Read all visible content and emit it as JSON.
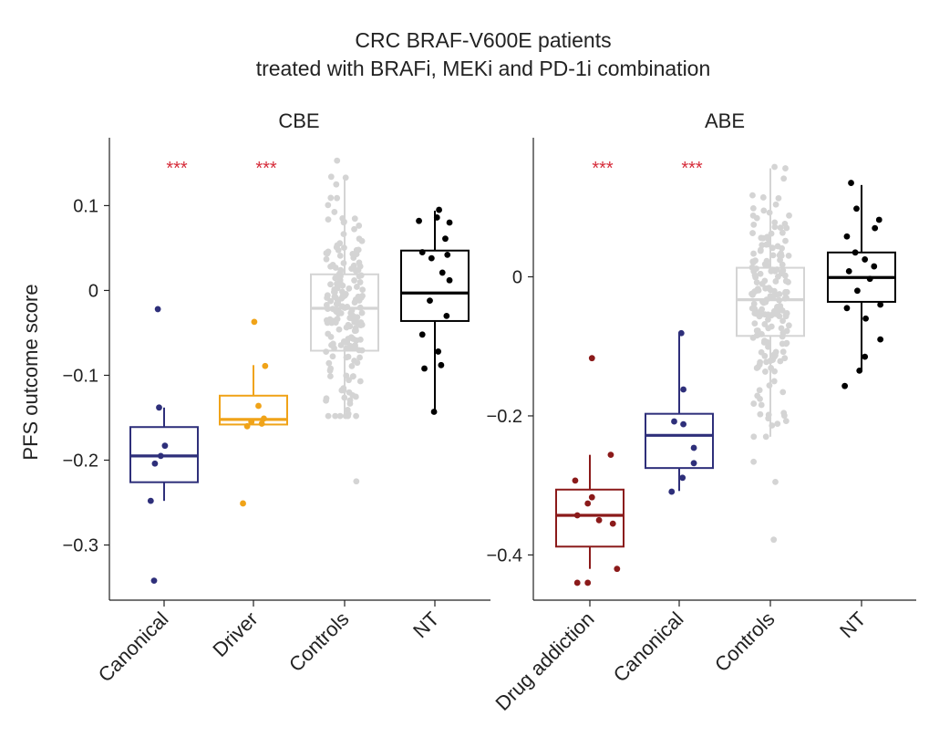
{
  "chart_data": {
    "type": "box",
    "title": "CRC BRAF-V600E patients",
    "subtitle": "treated with BRAFi, MEKi and PD-1i combination",
    "ylabel": "PFS outcome score",
    "significance_color": "#d62c3a",
    "panels": [
      {
        "name": "CBE",
        "ylim": [
          -0.365,
          0.18
        ],
        "yticks": [
          0.1,
          0,
          -0.1,
          -0.2,
          -0.3
        ],
        "ytick_labels": [
          "0.1",
          "0",
          "−0.1",
          "−0.2",
          "−0.3"
        ],
        "groups": [
          {
            "label": "Canonical",
            "color": "#2e2f7a",
            "box": {
              "q1": -0.226,
              "median": -0.195,
              "q3": -0.161,
              "whisker_low": -0.248,
              "whisker_high": -0.138
            },
            "significance": "***",
            "points": [
              {
                "x": -0.15,
                "y": -0.022
              },
              {
                "x": -0.12,
                "y": -0.138
              },
              {
                "x": 0.02,
                "y": -0.183
              },
              {
                "x": -0.08,
                "y": -0.195
              },
              {
                "x": -0.22,
                "y": -0.204
              },
              {
                "x": -0.32,
                "y": -0.248
              },
              {
                "x": -0.24,
                "y": -0.342
              }
            ]
          },
          {
            "label": "Driver",
            "color": "#f0a318",
            "box": {
              "q1": -0.158,
              "median": -0.152,
              "q3": -0.124,
              "whisker_low": -0.158,
              "whisker_high": -0.088
            },
            "significance": "***",
            "points": [
              {
                "x": 0.02,
                "y": -0.037
              },
              {
                "x": 0.28,
                "y": -0.089
              },
              {
                "x": 0.12,
                "y": -0.136
              },
              {
                "x": 0.25,
                "y": -0.151
              },
              {
                "x": -0.05,
                "y": -0.155
              },
              {
                "x": -0.15,
                "y": -0.16
              },
              {
                "x": 0.2,
                "y": -0.157
              },
              {
                "x": -0.25,
                "y": -0.251
              }
            ]
          },
          {
            "label": "Controls",
            "color": "#d4d4d4",
            "box": {
              "q1": -0.071,
              "median": -0.021,
              "q3": 0.019,
              "whisker_low": -0.148,
              "whisker_high": 0.133
            },
            "points_count": 190,
            "points": [
              {
                "x": -0.18,
                "y": 0.153
              },
              {
                "x": -0.32,
                "y": 0.134
              },
              {
                "x": -0.05,
                "y": 0.085
              },
              {
                "x": 0.28,
                "y": -0.225
              },
              {
                "x": -0.2,
                "y": 0.125
              }
            ]
          },
          {
            "label": "NT",
            "color": "#000000",
            "box": {
              "q1": -0.036,
              "median": -0.003,
              "q3": 0.047,
              "whisker_low": -0.143,
              "whisker_high": 0.094
            },
            "points": [
              {
                "x": -0.38,
                "y": 0.082
              },
              {
                "x": 0.05,
                "y": 0.086
              },
              {
                "x": 0.1,
                "y": 0.095
              },
              {
                "x": 0.35,
                "y": 0.08
              },
              {
                "x": 0.25,
                "y": 0.061
              },
              {
                "x": -0.08,
                "y": 0.038
              },
              {
                "x": 0.18,
                "y": 0.021
              },
              {
                "x": 0.35,
                "y": 0.012
              },
              {
                "x": -0.12,
                "y": -0.012
              },
              {
                "x": 0.28,
                "y": -0.03
              },
              {
                "x": -0.3,
                "y": -0.052
              },
              {
                "x": 0.15,
                "y": -0.088
              },
              {
                "x": -0.25,
                "y": -0.092
              },
              {
                "x": 0.08,
                "y": -0.072
              },
              {
                "x": -0.02,
                "y": -0.143
              },
              {
                "x": -0.3,
                "y": 0.045
              },
              {
                "x": 0.3,
                "y": 0.042
              }
            ]
          }
        ]
      },
      {
        "name": "ABE",
        "ylim": [
          -0.465,
          0.2
        ],
        "yticks": [
          0,
          -0.2,
          -0.4
        ],
        "ytick_labels": [
          "0",
          "−0.2",
          "−0.4"
        ],
        "groups": [
          {
            "label": "Drug addiction",
            "color": "#8b1a1a",
            "box": {
              "q1": -0.388,
              "median": -0.343,
              "q3": -0.306,
              "whisker_low": -0.42,
              "whisker_high": -0.256
            },
            "significance": "***",
            "points": [
              {
                "x": 0.05,
                "y": -0.117
              },
              {
                "x": 0.5,
                "y": -0.256
              },
              {
                "x": -0.35,
                "y": -0.293
              },
              {
                "x": 0.05,
                "y": -0.317
              },
              {
                "x": -0.05,
                "y": -0.326
              },
              {
                "x": -0.3,
                "y": -0.343
              },
              {
                "x": 0.22,
                "y": -0.35
              },
              {
                "x": 0.55,
                "y": -0.355
              },
              {
                "x": 0.65,
                "y": -0.42
              },
              {
                "x": -0.05,
                "y": -0.44
              },
              {
                "x": -0.3,
                "y": -0.44
              }
            ]
          },
          {
            "label": "Canonical",
            "color": "#2e2f7a",
            "box": {
              "q1": -0.275,
              "median": -0.228,
              "q3": -0.197,
              "whisker_low": -0.308,
              "whisker_high": -0.082
            },
            "significance": "***",
            "points": [
              {
                "x": 0.05,
                "y": -0.081
              },
              {
                "x": 0.1,
                "y": -0.162
              },
              {
                "x": -0.12,
                "y": -0.208
              },
              {
                "x": 0.1,
                "y": -0.212
              },
              {
                "x": 0.35,
                "y": -0.246
              },
              {
                "x": 0.35,
                "y": -0.268
              },
              {
                "x": 0.08,
                "y": -0.289
              },
              {
                "x": -0.18,
                "y": -0.309
              }
            ]
          },
          {
            "label": "Controls",
            "color": "#d4d4d4",
            "box": {
              "q1": -0.085,
              "median": -0.033,
              "q3": 0.013,
              "whisker_low": -0.23,
              "whisker_high": 0.156
            },
            "points_count": 190,
            "points": [
              {
                "x": 0.1,
                "y": 0.158
              },
              {
                "x": 0.08,
                "y": -0.378
              },
              {
                "x": 0.12,
                "y": -0.295
              },
              {
                "x": -0.4,
                "y": -0.266
              }
            ]
          },
          {
            "label": "NT",
            "color": "#000000",
            "box": {
              "q1": -0.036,
              "median": -0.001,
              "q3": 0.035,
              "whisker_low": -0.136,
              "whisker_high": 0.132
            },
            "points": [
              {
                "x": -0.25,
                "y": 0.135
              },
              {
                "x": -0.12,
                "y": 0.098
              },
              {
                "x": 0.42,
                "y": 0.082
              },
              {
                "x": 0.32,
                "y": 0.07
              },
              {
                "x": -0.35,
                "y": 0.058
              },
              {
                "x": -0.15,
                "y": 0.035
              },
              {
                "x": 0.08,
                "y": 0.025
              },
              {
                "x": 0.3,
                "y": 0.015
              },
              {
                "x": -0.3,
                "y": 0.008
              },
              {
                "x": 0.2,
                "y": -0.003
              },
              {
                "x": -0.1,
                "y": -0.02
              },
              {
                "x": 0.45,
                "y": -0.04
              },
              {
                "x": -0.35,
                "y": -0.045
              },
              {
                "x": 0.1,
                "y": -0.06
              },
              {
                "x": 0.45,
                "y": -0.09
              },
              {
                "x": 0.08,
                "y": -0.115
              },
              {
                "x": -0.05,
                "y": -0.135
              },
              {
                "x": -0.4,
                "y": -0.157
              }
            ]
          }
        ]
      }
    ]
  }
}
